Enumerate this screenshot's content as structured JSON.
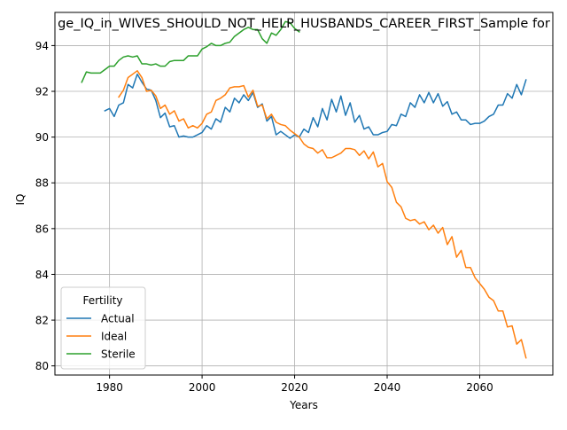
{
  "chart_data": {
    "type": "line",
    "title": "ge_IQ_in_WIVES_SHOULD_NOT_HELP_HUSBANDS_CAREER_FIRST_Sample for",
    "xlabel": "Years",
    "ylabel": "IQ",
    "xlim": [
      1968.2,
      2075.8
    ],
    "ylim": [
      79.6,
      95.45
    ],
    "x_ticks": [
      1980,
      2000,
      2020,
      2040,
      2060
    ],
    "x_tick_labels": [
      "1980",
      "2000",
      "2020",
      "2040",
      "2060"
    ],
    "y_ticks": [
      80,
      82,
      84,
      86,
      88,
      90,
      92,
      94
    ],
    "y_tick_labels": [
      "80",
      "82",
      "84",
      "86",
      "88",
      "90",
      "92",
      "94"
    ],
    "grid": true,
    "legend": {
      "title": "Fertility",
      "position": "lower-left"
    },
    "series": [
      {
        "name": "Actual",
        "color": "#1f77b4",
        "points": [
          [
            1979,
            91.15
          ],
          [
            1980,
            91.25
          ],
          [
            1981,
            90.9
          ],
          [
            1982,
            91.4
          ],
          [
            1983,
            91.5
          ],
          [
            1984,
            92.3
          ],
          [
            1985,
            92.15
          ],
          [
            1986,
            92.75
          ],
          [
            1987,
            92.4
          ],
          [
            1988,
            92.1
          ],
          [
            1989,
            92.05
          ],
          [
            1990,
            91.6
          ],
          [
            1991,
            90.85
          ],
          [
            1992,
            91.05
          ],
          [
            1993,
            90.45
          ],
          [
            1994,
            90.5
          ],
          [
            1995,
            90.0
          ],
          [
            1996,
            90.05
          ],
          [
            1997,
            90.0
          ],
          [
            1998,
            90.0
          ],
          [
            1999,
            90.1
          ],
          [
            2000,
            90.2
          ],
          [
            2001,
            90.5
          ],
          [
            2002,
            90.35
          ],
          [
            2003,
            90.8
          ],
          [
            2004,
            90.65
          ],
          [
            2005,
            91.3
          ],
          [
            2006,
            91.1
          ],
          [
            2007,
            91.7
          ],
          [
            2008,
            91.5
          ],
          [
            2009,
            91.85
          ],
          [
            2010,
            91.6
          ],
          [
            2011,
            91.95
          ],
          [
            2012,
            91.3
          ],
          [
            2013,
            91.45
          ],
          [
            2014,
            90.7
          ],
          [
            2015,
            90.9
          ],
          [
            2016,
            90.1
          ],
          [
            2017,
            90.25
          ],
          [
            2018,
            90.1
          ],
          [
            2019,
            89.95
          ],
          [
            2020,
            90.1
          ],
          [
            2021,
            90.0
          ],
          [
            2022,
            90.35
          ],
          [
            2023,
            90.2
          ],
          [
            2024,
            90.85
          ],
          [
            2025,
            90.45
          ],
          [
            2026,
            91.25
          ],
          [
            2027,
            90.75
          ],
          [
            2028,
            91.65
          ],
          [
            2029,
            91.1
          ],
          [
            2030,
            91.8
          ],
          [
            2031,
            90.95
          ],
          [
            2032,
            91.5
          ],
          [
            2033,
            90.65
          ],
          [
            2034,
            90.95
          ],
          [
            2035,
            90.35
          ],
          [
            2036,
            90.45
          ],
          [
            2037,
            90.1
          ],
          [
            2038,
            90.1
          ],
          [
            2039,
            90.2
          ],
          [
            2040,
            90.25
          ],
          [
            2041,
            90.55
          ],
          [
            2042,
            90.5
          ],
          [
            2043,
            91.0
          ],
          [
            2044,
            90.9
          ],
          [
            2045,
            91.5
          ],
          [
            2046,
            91.3
          ],
          [
            2047,
            91.85
          ],
          [
            2048,
            91.5
          ],
          [
            2049,
            91.95
          ],
          [
            2050,
            91.5
          ],
          [
            2051,
            91.9
          ],
          [
            2052,
            91.35
          ],
          [
            2053,
            91.55
          ],
          [
            2054,
            91.0
          ],
          [
            2055,
            91.1
          ],
          [
            2056,
            90.75
          ],
          [
            2057,
            90.75
          ],
          [
            2058,
            90.55
          ],
          [
            2059,
            90.6
          ],
          [
            2060,
            90.6
          ],
          [
            2061,
            90.7
          ],
          [
            2062,
            90.9
          ],
          [
            2063,
            91.0
          ],
          [
            2064,
            91.4
          ],
          [
            2065,
            91.4
          ],
          [
            2066,
            91.9
          ],
          [
            2067,
            91.7
          ],
          [
            2068,
            92.3
          ],
          [
            2069,
            91.85
          ],
          [
            2070,
            92.5
          ]
        ]
      },
      {
        "name": "Ideal",
        "color": "#ff7f0e",
        "points": [
          [
            1982,
            91.75
          ],
          [
            1983,
            92.05
          ],
          [
            1984,
            92.6
          ],
          [
            1985,
            92.75
          ],
          [
            1986,
            92.9
          ],
          [
            1987,
            92.6
          ],
          [
            1988,
            92.0
          ],
          [
            1989,
            92.05
          ],
          [
            1990,
            91.8
          ],
          [
            1991,
            91.25
          ],
          [
            1992,
            91.4
          ],
          [
            1993,
            91.0
          ],
          [
            1994,
            91.15
          ],
          [
            1995,
            90.7
          ],
          [
            1996,
            90.8
          ],
          [
            1997,
            90.4
          ],
          [
            1998,
            90.5
          ],
          [
            1999,
            90.4
          ],
          [
            2000,
            90.6
          ],
          [
            2001,
            91.0
          ],
          [
            2002,
            91.1
          ],
          [
            2003,
            91.6
          ],
          [
            2004,
            91.7
          ],
          [
            2005,
            91.85
          ],
          [
            2006,
            92.15
          ],
          [
            2007,
            92.2
          ],
          [
            2008,
            92.2
          ],
          [
            2009,
            92.25
          ],
          [
            2010,
            91.75
          ],
          [
            2011,
            92.05
          ],
          [
            2012,
            91.35
          ],
          [
            2013,
            91.4
          ],
          [
            2014,
            90.8
          ],
          [
            2015,
            91.0
          ],
          [
            2016,
            90.65
          ],
          [
            2017,
            90.55
          ],
          [
            2018,
            90.5
          ],
          [
            2019,
            90.3
          ],
          [
            2020,
            90.15
          ],
          [
            2021,
            90.0
          ],
          [
            2022,
            89.7
          ],
          [
            2023,
            89.55
          ],
          [
            2024,
            89.5
          ],
          [
            2025,
            89.3
          ],
          [
            2026,
            89.45
          ],
          [
            2027,
            89.1
          ],
          [
            2028,
            89.1
          ],
          [
            2029,
            89.2
          ],
          [
            2030,
            89.3
          ],
          [
            2031,
            89.5
          ],
          [
            2032,
            89.5
          ],
          [
            2033,
            89.45
          ],
          [
            2034,
            89.2
          ],
          [
            2035,
            89.4
          ],
          [
            2036,
            89.05
          ],
          [
            2037,
            89.35
          ],
          [
            2038,
            88.7
          ],
          [
            2039,
            88.85
          ],
          [
            2040,
            88.05
          ],
          [
            2041,
            87.8
          ],
          [
            2042,
            87.15
          ],
          [
            2043,
            86.95
          ],
          [
            2044,
            86.45
          ],
          [
            2045,
            86.35
          ],
          [
            2046,
            86.4
          ],
          [
            2047,
            86.2
          ],
          [
            2048,
            86.3
          ],
          [
            2049,
            85.95
          ],
          [
            2050,
            86.15
          ],
          [
            2051,
            85.8
          ],
          [
            2052,
            86.05
          ],
          [
            2053,
            85.3
          ],
          [
            2054,
            85.65
          ],
          [
            2055,
            84.75
          ],
          [
            2056,
            85.05
          ],
          [
            2057,
            84.3
          ],
          [
            2058,
            84.3
          ],
          [
            2059,
            83.85
          ],
          [
            2060,
            83.6
          ],
          [
            2061,
            83.35
          ],
          [
            2062,
            83.0
          ],
          [
            2063,
            82.85
          ],
          [
            2064,
            82.4
          ],
          [
            2065,
            82.4
          ],
          [
            2066,
            81.7
          ],
          [
            2067,
            81.75
          ],
          [
            2068,
            80.95
          ],
          [
            2069,
            81.15
          ],
          [
            2070,
            80.35
          ]
        ]
      },
      {
        "name": "Sterile",
        "color": "#2ca02c",
        "points": [
          [
            1974,
            92.4
          ],
          [
            1975,
            92.85
          ],
          [
            1976,
            92.8
          ],
          [
            1977,
            92.8
          ],
          [
            1978,
            92.8
          ],
          [
            1979,
            92.95
          ],
          [
            1980,
            93.1
          ],
          [
            1981,
            93.1
          ],
          [
            1982,
            93.35
          ],
          [
            1983,
            93.5
          ],
          [
            1984,
            93.55
          ],
          [
            1985,
            93.5
          ],
          [
            1986,
            93.55
          ],
          [
            1987,
            93.2
          ],
          [
            1988,
            93.2
          ],
          [
            1989,
            93.15
          ],
          [
            1990,
            93.2
          ],
          [
            1991,
            93.1
          ],
          [
            1992,
            93.1
          ],
          [
            1993,
            93.3
          ],
          [
            1994,
            93.35
          ],
          [
            1995,
            93.35
          ],
          [
            1996,
            93.35
          ],
          [
            1997,
            93.55
          ],
          [
            1998,
            93.55
          ],
          [
            1999,
            93.55
          ],
          [
            2000,
            93.85
          ],
          [
            2001,
            93.95
          ],
          [
            2002,
            94.1
          ],
          [
            2003,
            94.0
          ],
          [
            2004,
            94.0
          ],
          [
            2005,
            94.1
          ],
          [
            2006,
            94.15
          ],
          [
            2007,
            94.4
          ],
          [
            2008,
            94.55
          ],
          [
            2009,
            94.7
          ],
          [
            2010,
            94.8
          ],
          [
            2011,
            94.7
          ],
          [
            2012,
            94.7
          ],
          [
            2013,
            94.3
          ],
          [
            2014,
            94.1
          ],
          [
            2015,
            94.55
          ],
          [
            2016,
            94.45
          ],
          [
            2017,
            94.7
          ],
          [
            2018,
            95.05
          ],
          [
            2019,
            95.0
          ],
          [
            2020,
            94.75
          ],
          [
            2021,
            94.6
          ]
        ]
      }
    ]
  }
}
